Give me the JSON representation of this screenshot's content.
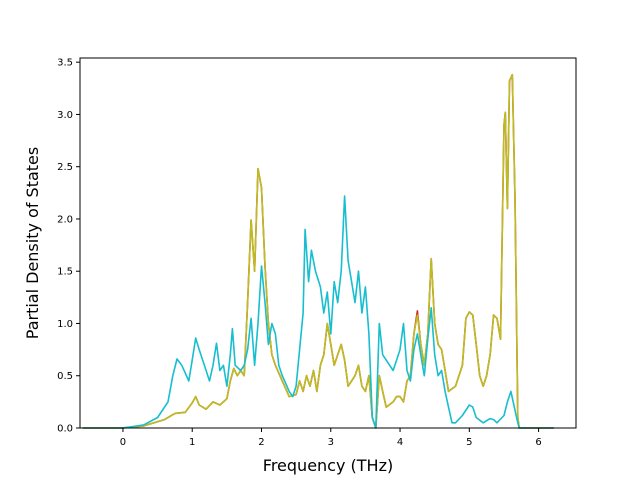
{
  "chart_data": {
    "type": "line",
    "title": "",
    "xlabel": "Frequency (THz)",
    "ylabel": "Partial Density of States",
    "xlim": [
      -0.62,
      6.54
    ],
    "ylim": [
      0.0,
      3.54
    ],
    "xticks": [
      0,
      1,
      2,
      3,
      4,
      5,
      6
    ],
    "xtick_labels": [
      "0",
      "1",
      "2",
      "3",
      "4",
      "5",
      "6"
    ],
    "yticks": [
      0.0,
      0.5,
      1.0,
      1.5,
      2.0,
      2.5,
      3.0,
      3.5
    ],
    "ytick_labels": [
      "0.0",
      "0.5",
      "1.0",
      "1.5",
      "2.0",
      "2.5",
      "3.0",
      "3.5"
    ],
    "grid": false,
    "legend": "none",
    "series": [
      {
        "color": "#d62728",
        "points": [
          [
            -0.58,
            0
          ],
          [
            0,
            0
          ],
          [
            0.3,
            0.02
          ],
          [
            0.6,
            0.08
          ],
          [
            0.75,
            0.14
          ],
          [
            0.9,
            0.15
          ],
          [
            1.0,
            0.24
          ],
          [
            1.05,
            0.3
          ],
          [
            1.1,
            0.22
          ],
          [
            1.2,
            0.18
          ],
          [
            1.3,
            0.25
          ],
          [
            1.4,
            0.22
          ],
          [
            1.5,
            0.28
          ],
          [
            1.55,
            0.45
          ],
          [
            1.6,
            0.57
          ],
          [
            1.65,
            0.5
          ],
          [
            1.7,
            0.55
          ],
          [
            1.75,
            0.5
          ],
          [
            1.8,
            1.2
          ],
          [
            1.85,
            1.99
          ],
          [
            1.9,
            1.5
          ],
          [
            1.95,
            2.48
          ],
          [
            2.0,
            2.3
          ],
          [
            2.05,
            1.55
          ],
          [
            2.1,
            1.0
          ],
          [
            2.15,
            0.7
          ],
          [
            2.2,
            0.6
          ],
          [
            2.3,
            0.45
          ],
          [
            2.4,
            0.3
          ],
          [
            2.5,
            0.32
          ],
          [
            2.55,
            0.45
          ],
          [
            2.6,
            0.35
          ],
          [
            2.65,
            0.5
          ],
          [
            2.7,
            0.4
          ],
          [
            2.75,
            0.55
          ],
          [
            2.8,
            0.35
          ],
          [
            2.85,
            0.6
          ],
          [
            2.9,
            0.7
          ],
          [
            2.95,
            1.0
          ],
          [
            3.0,
            0.8
          ],
          [
            3.05,
            0.6
          ],
          [
            3.1,
            0.7
          ],
          [
            3.15,
            0.8
          ],
          [
            3.2,
            0.65
          ],
          [
            3.25,
            0.4
          ],
          [
            3.3,
            0.45
          ],
          [
            3.35,
            0.5
          ],
          [
            3.4,
            0.6
          ],
          [
            3.45,
            0.4
          ],
          [
            3.5,
            0.35
          ],
          [
            3.55,
            0.5
          ],
          [
            3.6,
            0.1
          ],
          [
            3.65,
            0.0
          ],
          [
            3.7,
            0.5
          ],
          [
            3.75,
            0.35
          ],
          [
            3.8,
            0.2
          ],
          [
            3.9,
            0.25
          ],
          [
            3.95,
            0.3
          ],
          [
            4.0,
            0.3
          ],
          [
            4.05,
            0.25
          ],
          [
            4.1,
            0.45
          ],
          [
            4.15,
            0.5
          ],
          [
            4.2,
            0.9
          ],
          [
            4.25,
            1.12
          ],
          [
            4.3,
            0.8
          ],
          [
            4.35,
            0.6
          ],
          [
            4.4,
            0.9
          ],
          [
            4.45,
            1.62
          ],
          [
            4.5,
            1.0
          ],
          [
            4.55,
            0.8
          ],
          [
            4.6,
            0.75
          ],
          [
            4.65,
            0.55
          ],
          [
            4.7,
            0.35
          ],
          [
            4.8,
            0.4
          ],
          [
            4.9,
            0.6
          ],
          [
            4.95,
            1.05
          ],
          [
            5.0,
            1.11
          ],
          [
            5.05,
            1.08
          ],
          [
            5.1,
            0.8
          ],
          [
            5.15,
            0.5
          ],
          [
            5.2,
            0.4
          ],
          [
            5.25,
            0.5
          ],
          [
            5.3,
            0.7
          ],
          [
            5.35,
            1.08
          ],
          [
            5.4,
            1.05
          ],
          [
            5.45,
            0.85
          ],
          [
            5.5,
            2.9
          ],
          [
            5.52,
            3.02
          ],
          [
            5.55,
            2.1
          ],
          [
            5.58,
            3.32
          ],
          [
            5.62,
            3.38
          ],
          [
            5.66,
            2.2
          ],
          [
            5.7,
            0.1
          ],
          [
            5.72,
            0.0
          ],
          [
            6.22,
            0
          ]
        ]
      },
      {
        "color": "#bcbd22",
        "points": [
          [
            -0.58,
            0
          ],
          [
            0,
            0
          ],
          [
            0.3,
            0.02
          ],
          [
            0.6,
            0.08
          ],
          [
            0.75,
            0.14
          ],
          [
            0.9,
            0.15
          ],
          [
            1.0,
            0.24
          ],
          [
            1.05,
            0.3
          ],
          [
            1.1,
            0.22
          ],
          [
            1.2,
            0.18
          ],
          [
            1.3,
            0.25
          ],
          [
            1.4,
            0.22
          ],
          [
            1.5,
            0.28
          ],
          [
            1.55,
            0.45
          ],
          [
            1.6,
            0.57
          ],
          [
            1.65,
            0.5
          ],
          [
            1.7,
            0.55
          ],
          [
            1.75,
            0.5
          ],
          [
            1.8,
            1.2
          ],
          [
            1.85,
            1.99
          ],
          [
            1.9,
            1.5
          ],
          [
            1.95,
            2.48
          ],
          [
            2.0,
            2.3
          ],
          [
            2.05,
            1.55
          ],
          [
            2.1,
            1.0
          ],
          [
            2.15,
            0.7
          ],
          [
            2.2,
            0.6
          ],
          [
            2.3,
            0.45
          ],
          [
            2.4,
            0.3
          ],
          [
            2.5,
            0.32
          ],
          [
            2.55,
            0.45
          ],
          [
            2.6,
            0.35
          ],
          [
            2.65,
            0.5
          ],
          [
            2.7,
            0.4
          ],
          [
            2.75,
            0.55
          ],
          [
            2.8,
            0.35
          ],
          [
            2.85,
            0.6
          ],
          [
            2.9,
            0.7
          ],
          [
            2.95,
            1.0
          ],
          [
            3.0,
            0.8
          ],
          [
            3.05,
            0.6
          ],
          [
            3.1,
            0.7
          ],
          [
            3.15,
            0.8
          ],
          [
            3.2,
            0.65
          ],
          [
            3.25,
            0.4
          ],
          [
            3.3,
            0.45
          ],
          [
            3.35,
            0.5
          ],
          [
            3.4,
            0.6
          ],
          [
            3.45,
            0.4
          ],
          [
            3.5,
            0.35
          ],
          [
            3.55,
            0.5
          ],
          [
            3.6,
            0.1
          ],
          [
            3.65,
            0.0
          ],
          [
            3.7,
            0.5
          ],
          [
            3.75,
            0.35
          ],
          [
            3.8,
            0.2
          ],
          [
            3.9,
            0.25
          ],
          [
            3.95,
            0.3
          ],
          [
            4.0,
            0.3
          ],
          [
            4.05,
            0.25
          ],
          [
            4.1,
            0.45
          ],
          [
            4.15,
            0.5
          ],
          [
            4.2,
            0.9
          ],
          [
            4.25,
            1.08
          ],
          [
            4.3,
            0.8
          ],
          [
            4.35,
            0.6
          ],
          [
            4.4,
            0.9
          ],
          [
            4.45,
            1.62
          ],
          [
            4.5,
            1.0
          ],
          [
            4.55,
            0.8
          ],
          [
            4.6,
            0.75
          ],
          [
            4.65,
            0.55
          ],
          [
            4.7,
            0.35
          ],
          [
            4.8,
            0.4
          ],
          [
            4.9,
            0.6
          ],
          [
            4.95,
            1.05
          ],
          [
            5.0,
            1.11
          ],
          [
            5.05,
            1.08
          ],
          [
            5.1,
            0.8
          ],
          [
            5.15,
            0.5
          ],
          [
            5.2,
            0.4
          ],
          [
            5.25,
            0.5
          ],
          [
            5.3,
            0.7
          ],
          [
            5.35,
            1.08
          ],
          [
            5.4,
            1.05
          ],
          [
            5.45,
            0.85
          ],
          [
            5.5,
            2.9
          ],
          [
            5.52,
            3.02
          ],
          [
            5.55,
            2.1
          ],
          [
            5.58,
            3.32
          ],
          [
            5.62,
            3.38
          ],
          [
            5.66,
            2.2
          ],
          [
            5.7,
            0.1
          ],
          [
            5.72,
            0.0
          ],
          [
            6.22,
            0
          ]
        ]
      },
      {
        "color": "#17becf",
        "points": [
          [
            -0.58,
            0
          ],
          [
            0,
            0
          ],
          [
            0.3,
            0.03
          ],
          [
            0.5,
            0.1
          ],
          [
            0.65,
            0.25
          ],
          [
            0.72,
            0.5
          ],
          [
            0.78,
            0.66
          ],
          [
            0.85,
            0.6
          ],
          [
            0.95,
            0.45
          ],
          [
            1.0,
            0.65
          ],
          [
            1.05,
            0.86
          ],
          [
            1.1,
            0.75
          ],
          [
            1.2,
            0.55
          ],
          [
            1.25,
            0.45
          ],
          [
            1.3,
            0.6
          ],
          [
            1.35,
            0.81
          ],
          [
            1.4,
            0.55
          ],
          [
            1.45,
            0.6
          ],
          [
            1.5,
            0.4
          ],
          [
            1.55,
            0.7
          ],
          [
            1.58,
            0.95
          ],
          [
            1.62,
            0.6
          ],
          [
            1.7,
            0.55
          ],
          [
            1.75,
            0.6
          ],
          [
            1.8,
            0.75
          ],
          [
            1.85,
            1.05
          ],
          [
            1.9,
            0.6
          ],
          [
            1.95,
            1.0
          ],
          [
            2.0,
            1.55
          ],
          [
            2.05,
            1.2
          ],
          [
            2.1,
            0.8
          ],
          [
            2.15,
            1.0
          ],
          [
            2.2,
            0.9
          ],
          [
            2.25,
            0.6
          ],
          [
            2.3,
            0.5
          ],
          [
            2.4,
            0.35
          ],
          [
            2.45,
            0.3
          ],
          [
            2.5,
            0.4
          ],
          [
            2.55,
            0.75
          ],
          [
            2.6,
            1.1
          ],
          [
            2.63,
            1.9
          ],
          [
            2.68,
            1.4
          ],
          [
            2.72,
            1.7
          ],
          [
            2.78,
            1.5
          ],
          [
            2.85,
            1.35
          ],
          [
            2.9,
            1.1
          ],
          [
            2.95,
            1.3
          ],
          [
            3.0,
            0.9
          ],
          [
            3.05,
            1.4
          ],
          [
            3.1,
            1.2
          ],
          [
            3.15,
            1.5
          ],
          [
            3.2,
            2.22
          ],
          [
            3.25,
            1.6
          ],
          [
            3.3,
            1.4
          ],
          [
            3.35,
            1.2
          ],
          [
            3.4,
            1.5
          ],
          [
            3.45,
            1.1
          ],
          [
            3.5,
            1.35
          ],
          [
            3.55,
            0.9
          ],
          [
            3.6,
            0.1
          ],
          [
            3.65,
            0.0
          ],
          [
            3.7,
            1.0
          ],
          [
            3.75,
            0.7
          ],
          [
            3.8,
            0.65
          ],
          [
            3.85,
            0.6
          ],
          [
            3.9,
            0.55
          ],
          [
            3.95,
            0.65
          ],
          [
            4.0,
            0.75
          ],
          [
            4.05,
            1.0
          ],
          [
            4.1,
            0.55
          ],
          [
            4.15,
            0.45
          ],
          [
            4.2,
            0.75
          ],
          [
            4.25,
            0.9
          ],
          [
            4.3,
            0.7
          ],
          [
            4.35,
            0.5
          ],
          [
            4.4,
            0.85
          ],
          [
            4.45,
            1.15
          ],
          [
            4.5,
            0.7
          ],
          [
            4.55,
            0.5
          ],
          [
            4.6,
            0.55
          ],
          [
            4.65,
            0.35
          ],
          [
            4.7,
            0.2
          ],
          [
            4.75,
            0.05
          ],
          [
            4.8,
            0.05
          ],
          [
            4.9,
            0.12
          ],
          [
            5.0,
            0.22
          ],
          [
            5.05,
            0.2
          ],
          [
            5.1,
            0.1
          ],
          [
            5.2,
            0.05
          ],
          [
            5.3,
            0.09
          ],
          [
            5.35,
            0.08
          ],
          [
            5.4,
            0.05
          ],
          [
            5.5,
            0.12
          ],
          [
            5.55,
            0.25
          ],
          [
            5.6,
            0.35
          ],
          [
            5.65,
            0.2
          ],
          [
            5.7,
            0.05
          ],
          [
            5.72,
            0.0
          ],
          [
            6.22,
            0
          ]
        ]
      }
    ]
  }
}
